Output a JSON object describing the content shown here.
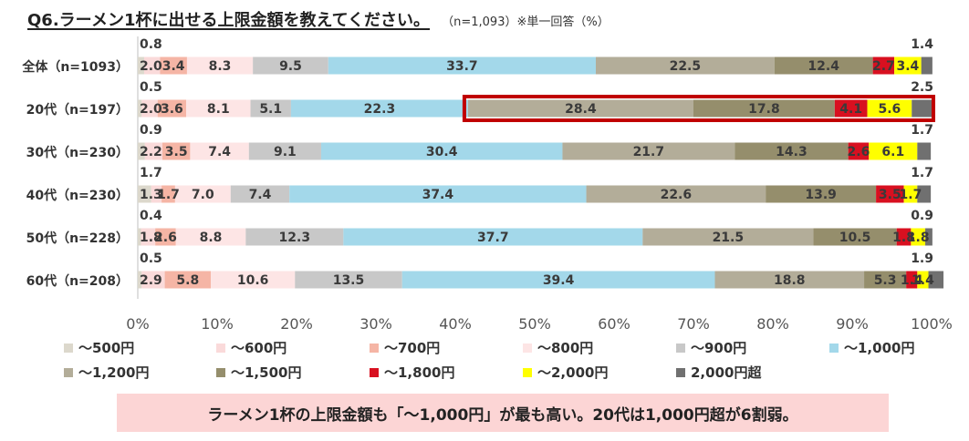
{
  "title": "Q6.ラーメン1杯に出せる上限金額を教えてください。",
  "subtitle": "（n=1,093）※単一回答（%）",
  "summary": "ラーメン1杯の上限金額も「～1,000円」が最も高い。20代は1,000円超が6割弱。",
  "chart_data": {
    "type": "bar",
    "orientation": "horizontal",
    "stacked": true,
    "xlim": [
      0,
      100
    ],
    "xticks": [
      "0%",
      "10%",
      "20%",
      "30%",
      "40%",
      "50%",
      "60%",
      "70%",
      "80%",
      "90%",
      "100%"
    ],
    "categories": [
      "全体（n=1093）",
      "20代（n=197）",
      "30代（n=230）",
      "40代（n=230）",
      "50代（n=228）",
      "60代（n=208）"
    ],
    "series": [
      {
        "name": "～500円",
        "color": "#dcd8cc",
        "values": [
          0.8,
          0.5,
          0.9,
          1.7,
          0.4,
          0.5
        ]
      },
      {
        "name": "～600円",
        "color": "#fadada",
        "values": [
          2.0,
          2.0,
          2.2,
          1.3,
          1.8,
          2.9
        ]
      },
      {
        "name": "～700円",
        "color": "#f5b5a5",
        "values": [
          3.4,
          3.6,
          3.5,
          1.7,
          2.6,
          5.8
        ]
      },
      {
        "name": "～800円",
        "color": "#fde5e5",
        "values": [
          8.3,
          8.1,
          7.4,
          7.0,
          8.8,
          10.6
        ]
      },
      {
        "name": "～900円",
        "color": "#c8c8c8",
        "values": [
          9.5,
          5.1,
          9.1,
          7.4,
          12.3,
          13.5
        ]
      },
      {
        "name": "～1,000円",
        "color": "#a3d8ea",
        "values": [
          33.7,
          22.3,
          30.4,
          37.4,
          37.7,
          39.4
        ]
      },
      {
        "name": "～1,200円",
        "color": "#b3ad99",
        "values": [
          22.5,
          28.4,
          21.7,
          22.6,
          21.5,
          18.8
        ]
      },
      {
        "name": "～1,500円",
        "color": "#958e6c",
        "values": [
          12.4,
          17.8,
          14.3,
          13.9,
          10.5,
          5.3
        ]
      },
      {
        "name": "～1,800円",
        "color": "#d81020",
        "values": [
          2.7,
          4.1,
          2.6,
          3.5,
          1.8,
          1.4
        ]
      },
      {
        "name": "～2,000円",
        "color": "#ffff00",
        "values": [
          3.4,
          5.6,
          6.1,
          1.7,
          1.8,
          1.4
        ]
      },
      {
        "name": "2,000円超",
        "color": "#707070",
        "values": [
          1.4,
          2.5,
          1.7,
          1.7,
          0.9,
          1.9
        ]
      }
    ],
    "highlight": {
      "category": "20代（n=197）",
      "from_series": "～1,200円",
      "to_series": "2,000円超"
    }
  }
}
